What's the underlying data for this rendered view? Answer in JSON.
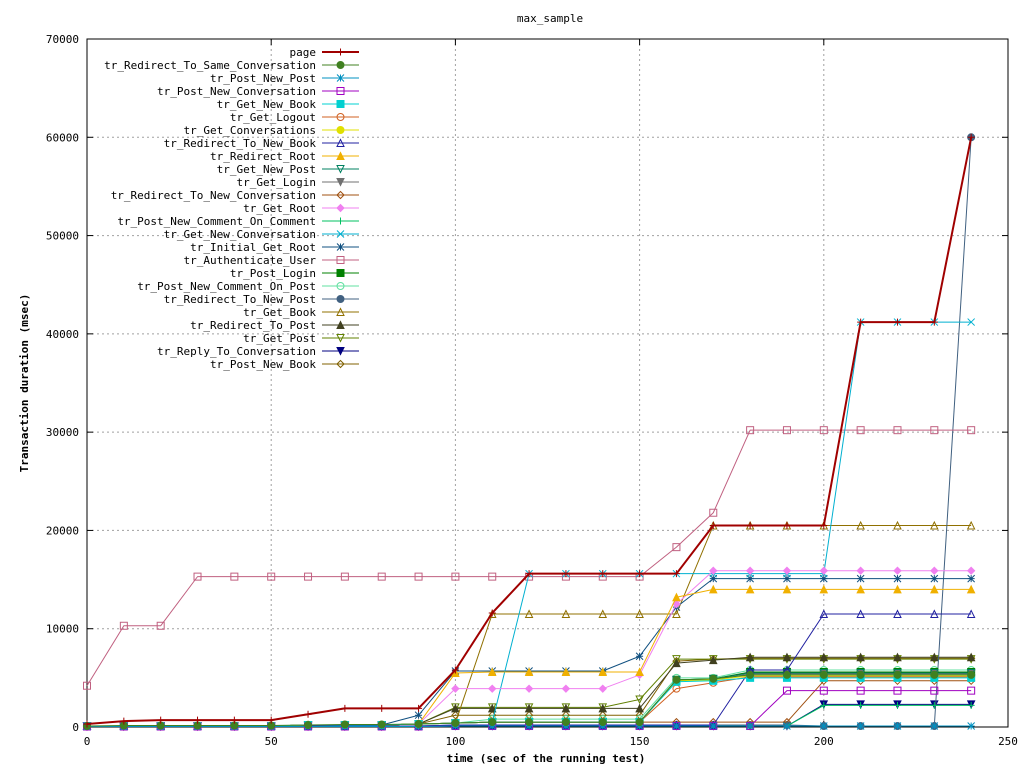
{
  "chart_data": {
    "type": "line",
    "title": "max_sample",
    "xlabel": "time (sec of the running test)",
    "ylabel": "Transaction duration (msec)",
    "xlim": [
      0,
      250
    ],
    "ylim": [
      0,
      70000
    ],
    "xticks": [
      0,
      50,
      100,
      150,
      200,
      250
    ],
    "yticks": [
      0,
      10000,
      20000,
      30000,
      40000,
      50000,
      60000,
      70000
    ],
    "grid": true,
    "legend_position": "top-left",
    "x": [
      0,
      10,
      20,
      30,
      40,
      50,
      60,
      70,
      80,
      90,
      100,
      110,
      120,
      130,
      140,
      150,
      160,
      170,
      180,
      190,
      200,
      210,
      220,
      230,
      240
    ],
    "series": [
      {
        "name": "page",
        "color": "#a00000",
        "marker": "plus",
        "values": [
          300,
          600,
          700,
          700,
          700,
          700,
          1300,
          1900,
          1900,
          1900,
          5800,
          11600,
          15600,
          15600,
          15600,
          15600,
          15600,
          20500,
          20500,
          20500,
          20500,
          41200,
          41200,
          41200,
          60000
        ]
      },
      {
        "name": "tr_Redirect_To_Same_Conversation",
        "color": "#408020",
        "marker": "circle-filled",
        "values": [
          100,
          150,
          150,
          150,
          150,
          150,
          200,
          250,
          250,
          300,
          400,
          500,
          500,
          500,
          500,
          500,
          4800,
          4900,
          5300,
          5300,
          5300,
          5300,
          5300,
          5300,
          5300
        ]
      },
      {
        "name": "tr_Post_New_Post",
        "color": "#0090c0",
        "marker": "star",
        "values": [
          50,
          50,
          50,
          50,
          50,
          50,
          50,
          50,
          50,
          50,
          100,
          100,
          100,
          100,
          100,
          100,
          100,
          100,
          100,
          100,
          100,
          100,
          100,
          100,
          100
        ]
      },
      {
        "name": "tr_Post_New_Conversation",
        "color": "#a000c0",
        "marker": "square-open",
        "values": [
          50,
          50,
          50,
          50,
          50,
          50,
          50,
          50,
          50,
          50,
          100,
          100,
          100,
          100,
          100,
          100,
          100,
          100,
          100,
          3700,
          3700,
          3700,
          3700,
          3700,
          3700
        ]
      },
      {
        "name": "tr_Get_New_Book",
        "color": "#00d0d0",
        "marker": "square-filled",
        "values": [
          100,
          100,
          100,
          100,
          100,
          100,
          200,
          200,
          200,
          300,
          400,
          500,
          500,
          500,
          500,
          500,
          4600,
          4700,
          5000,
          5000,
          5000,
          5000,
          5000,
          5000,
          5000
        ]
      },
      {
        "name": "tr_Get_Logout",
        "color": "#d06020",
        "marker": "circle-open",
        "values": [
          100,
          100,
          100,
          100,
          100,
          100,
          200,
          200,
          200,
          300,
          400,
          500,
          500,
          500,
          500,
          500,
          3900,
          4500,
          5100,
          5100,
          5100,
          5100,
          5100,
          5100,
          5100
        ]
      },
      {
        "name": "tr_Get_Conversations",
        "color": "#e0e000",
        "marker": "circle-filled",
        "values": [
          100,
          100,
          100,
          100,
          100,
          100,
          200,
          200,
          200,
          300,
          400,
          500,
          500,
          500,
          500,
          500,
          4700,
          4800,
          5200,
          5200,
          5200,
          5200,
          5200,
          5200,
          5200
        ]
      },
      {
        "name": "tr_Redirect_To_New_Book",
        "color": "#2020a0",
        "marker": "triangle-open",
        "values": [
          100,
          100,
          100,
          100,
          100,
          100,
          100,
          100,
          100,
          100,
          200,
          200,
          200,
          200,
          200,
          200,
          200,
          200,
          5800,
          5800,
          11500,
          11500,
          11500,
          11500,
          11500
        ]
      },
      {
        "name": "tr_Redirect_Root",
        "color": "#f0b000",
        "marker": "triangle-filled",
        "values": [
          100,
          100,
          100,
          100,
          100,
          100,
          200,
          200,
          200,
          300,
          5500,
          5600,
          5600,
          5600,
          5600,
          5600,
          13200,
          14000,
          14000,
          14000,
          14000,
          14000,
          14000,
          14000,
          14000
        ]
      },
      {
        "name": "tr_Get_New_Post",
        "color": "#008060",
        "marker": "triangle-down-open",
        "values": [
          100,
          100,
          100,
          100,
          100,
          100,
          200,
          200,
          200,
          300,
          400,
          500,
          500,
          500,
          500,
          500,
          4800,
          4900,
          5500,
          5500,
          5500,
          5500,
          5500,
          5500,
          5500
        ]
      },
      {
        "name": "tr_Get_Login",
        "color": "#707070",
        "marker": "triangle-down-filled",
        "values": [
          100,
          100,
          100,
          100,
          100,
          100,
          200,
          200,
          200,
          300,
          400,
          500,
          500,
          500,
          500,
          500,
          4700,
          4800,
          5400,
          5400,
          5400,
          5400,
          5400,
          5400,
          5400
        ]
      },
      {
        "name": "tr_Redirect_To_New_Conversation",
        "color": "#a05010",
        "marker": "diamond-open",
        "values": [
          100,
          100,
          100,
          100,
          100,
          100,
          200,
          200,
          200,
          300,
          400,
          500,
          500,
          500,
          500,
          500,
          500,
          500,
          500,
          500,
          4700,
          4700,
          4700,
          4700,
          4700
        ]
      },
      {
        "name": "tr_Get_Root",
        "color": "#f080f0",
        "marker": "diamond-filled",
        "values": [
          100,
          100,
          100,
          100,
          100,
          100,
          200,
          200,
          200,
          300,
          3900,
          3900,
          3900,
          3900,
          3900,
          5300,
          12500,
          15900,
          15900,
          15900,
          15900,
          15900,
          15900,
          15900,
          15900
        ]
      },
      {
        "name": "tr_Post_New_Comment_On_Comment",
        "color": "#00c060",
        "marker": "plus",
        "values": [
          50,
          50,
          50,
          50,
          50,
          50,
          50,
          50,
          50,
          50,
          100,
          100,
          100,
          100,
          100,
          100,
          100,
          100,
          100,
          100,
          2200,
          2200,
          2200,
          2200,
          2200
        ]
      },
      {
        "name": "tr_Get_New_Conversation",
        "color": "#00b0d0",
        "marker": "cross",
        "values": [
          100,
          100,
          100,
          100,
          100,
          100,
          200,
          200,
          200,
          300,
          400,
          500,
          15600,
          15600,
          15600,
          15600,
          15600,
          15600,
          15600,
          15600,
          15600,
          41200,
          41200,
          41200,
          41200
        ]
      },
      {
        "name": "tr_Initial_Get_Root",
        "color": "#105080",
        "marker": "star",
        "values": [
          100,
          100,
          100,
          100,
          100,
          100,
          200,
          200,
          200,
          1200,
          5700,
          5700,
          5700,
          5700,
          5700,
          7200,
          12200,
          15100,
          15100,
          15100,
          15100,
          15100,
          15100,
          15100,
          15100
        ]
      },
      {
        "name": "tr_Authenticate_User",
        "color": "#c06080",
        "marker": "square-open",
        "values": [
          4200,
          10300,
          10300,
          15300,
          15300,
          15300,
          15300,
          15300,
          15300,
          15300,
          15300,
          15300,
          15300,
          15300,
          15300,
          15300,
          18300,
          21800,
          30200,
          30200,
          30200,
          30200,
          30200,
          30200,
          30200
        ]
      },
      {
        "name": "tr_Post_Login",
        "color": "#008000",
        "marker": "square-filled",
        "values": [
          100,
          100,
          100,
          100,
          100,
          100,
          200,
          200,
          200,
          300,
          400,
          500,
          500,
          500,
          500,
          500,
          4800,
          4900,
          5600,
          5600,
          5600,
          5600,
          5600,
          5600,
          5600
        ]
      },
      {
        "name": "tr_Post_New_Comment_On_Post",
        "color": "#60e0a0",
        "marker": "circle-open",
        "values": [
          100,
          100,
          100,
          100,
          100,
          100,
          200,
          200,
          200,
          300,
          400,
          800,
          800,
          800,
          800,
          800,
          5000,
          5000,
          5800,
          5800,
          5800,
          5800,
          5800,
          5800,
          5800
        ]
      },
      {
        "name": "tr_Redirect_To_New_Post",
        "color": "#406080",
        "marker": "circle-filled",
        "values": [
          100,
          100,
          100,
          100,
          100,
          100,
          100,
          100,
          100,
          100,
          200,
          200,
          200,
          200,
          200,
          200,
          200,
          200,
          200,
          200,
          100,
          100,
          100,
          100,
          60000
        ]
      },
      {
        "name": "tr_Get_Book",
        "color": "#907000",
        "marker": "triangle-open",
        "values": [
          100,
          100,
          100,
          100,
          100,
          100,
          200,
          200,
          200,
          300,
          400,
          11500,
          11500,
          11500,
          11500,
          11500,
          11500,
          20500,
          20500,
          20500,
          20500,
          20500,
          20500,
          20500,
          20500
        ]
      },
      {
        "name": "tr_Redirect_To_Post",
        "color": "#404020",
        "marker": "triangle-filled",
        "values": [
          100,
          100,
          100,
          100,
          100,
          100,
          200,
          200,
          200,
          300,
          1900,
          1900,
          1900,
          1900,
          1900,
          1900,
          6500,
          6800,
          7100,
          7100,
          7100,
          7100,
          7100,
          7100,
          7100
        ]
      },
      {
        "name": "tr_Get_Post",
        "color": "#608000",
        "marker": "triangle-down-open",
        "values": [
          100,
          100,
          100,
          100,
          100,
          100,
          200,
          200,
          200,
          300,
          2000,
          2000,
          2000,
          2000,
          2000,
          2800,
          6900,
          6900,
          6900,
          6900,
          6900,
          6900,
          6900,
          6900,
          6900
        ]
      },
      {
        "name": "tr_Reply_To_Conversation",
        "color": "#000080",
        "marker": "triangle-down-filled",
        "values": [
          50,
          50,
          50,
          50,
          50,
          50,
          50,
          50,
          50,
          50,
          100,
          100,
          100,
          100,
          100,
          100,
          100,
          100,
          100,
          100,
          2300,
          2300,
          2300,
          2300,
          2300
        ]
      },
      {
        "name": "tr_Post_New_Book",
        "color": "#806000",
        "marker": "diamond-open",
        "values": [
          100,
          100,
          100,
          100,
          100,
          100,
          200,
          200,
          200,
          300,
          1200,
          1200,
          1200,
          1200,
          1200,
          1200,
          6700,
          6900,
          7000,
          7000,
          7000,
          7000,
          7000,
          7000,
          7000
        ]
      }
    ]
  }
}
